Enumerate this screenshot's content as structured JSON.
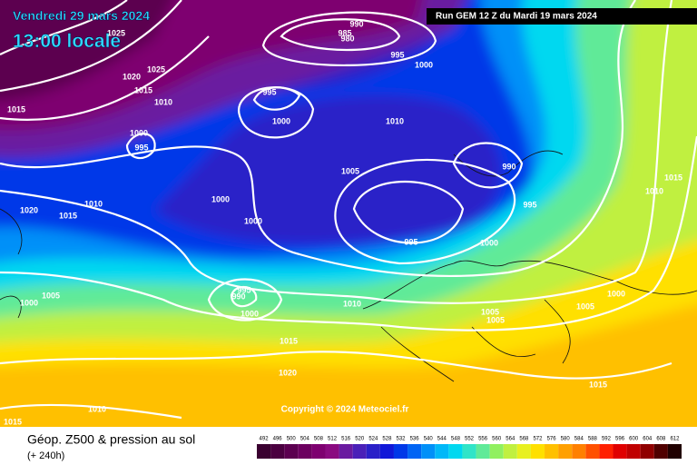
{
  "header": {
    "date": "Vendredi 29 mars 2024",
    "time": "13:00 locale",
    "run": "Run GEM 12 Z du Mardi 19 mars 2024"
  },
  "copyright": "Copyright © 2024 Meteociel.fr",
  "footer": {
    "title": "Géop. Z500 & pression au sol",
    "lead": "(+ 240h)"
  },
  "isobar_labels": [
    990,
    985,
    980,
    995,
    1000,
    1025,
    1020,
    1025,
    1015,
    1010,
    1015,
    995,
    1000,
    1010,
    1000,
    995,
    990,
    1005,
    1010,
    1015,
    1000,
    1000,
    995,
    1020,
    1015,
    1010,
    995,
    1000,
    995,
    990,
    1005,
    1000,
    1000,
    1010,
    1000,
    1005,
    1005,
    1005,
    1015,
    1020,
    1015,
    1010,
    1015
  ],
  "scale": {
    "levels": [
      492,
      496,
      500,
      504,
      508,
      512,
      516,
      520,
      524,
      528,
      532,
      536,
      540,
      544,
      548,
      552,
      556,
      560,
      564,
      568,
      572,
      576,
      580,
      584,
      588,
      592,
      596,
      600,
      604,
      608,
      612
    ],
    "colors": [
      "#3a0030",
      "#4b0040",
      "#5c0050",
      "#6d0060",
      "#7e0070",
      "#8a0a80",
      "#6a1aa0",
      "#4a20b8",
      "#2a20c8",
      "#1018d8",
      "#0038e8",
      "#0064f4",
      "#0090f8",
      "#00b8f8",
      "#00d8f0",
      "#30e4c8",
      "#60ea98",
      "#90f060",
      "#c0f040",
      "#e8f020",
      "#ffe000",
      "#ffc000",
      "#ffa000",
      "#ff8000",
      "#ff5000",
      "#ff2000",
      "#e00000",
      "#c00000",
      "#900000",
      "#500000",
      "#200000"
    ]
  }
}
